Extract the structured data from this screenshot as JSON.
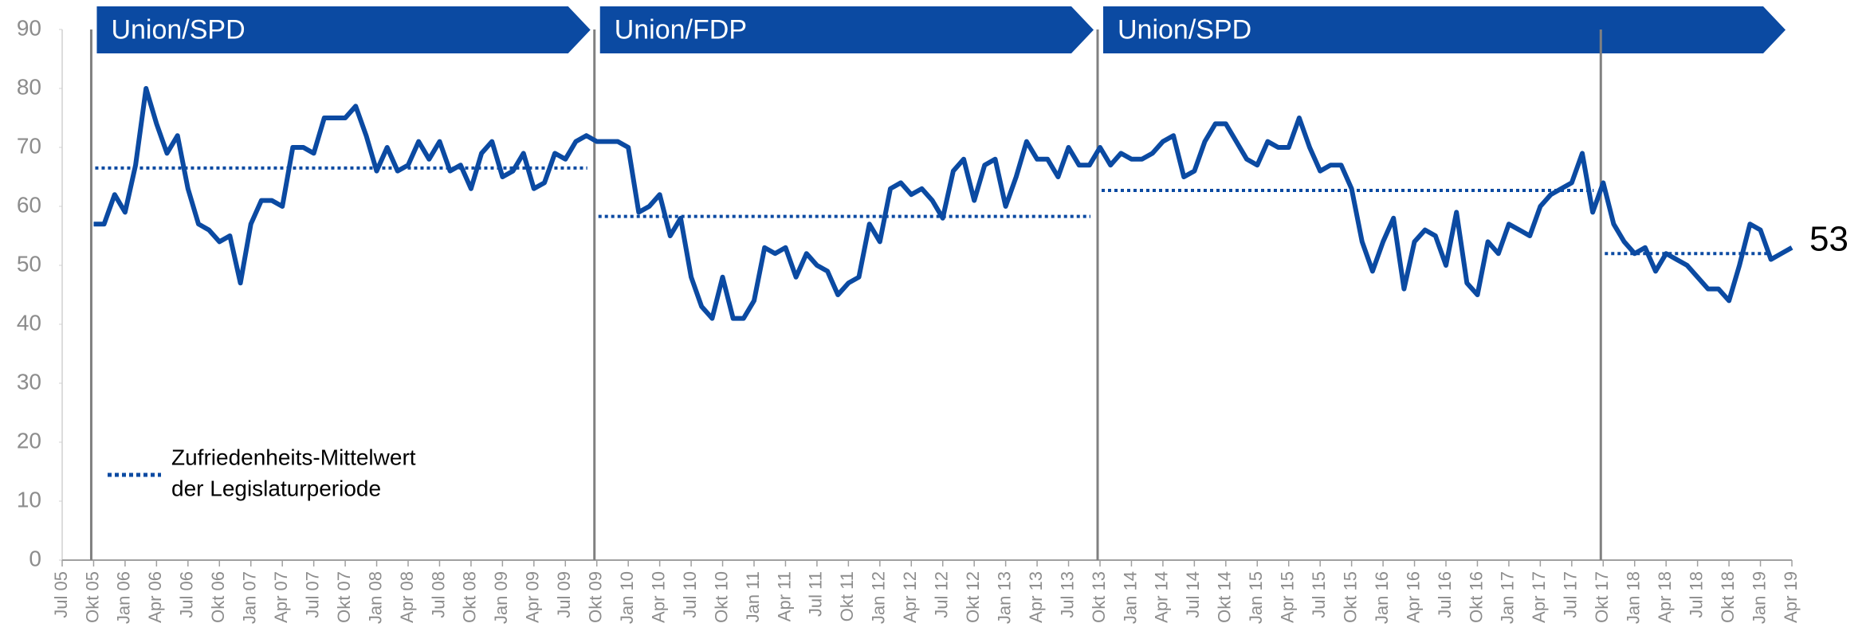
{
  "chart_data": {
    "type": "line",
    "categories": [
      "Jul 05",
      null,
      null,
      "Okt 05",
      null,
      null,
      "Jan 06",
      null,
      null,
      "Apr 06",
      null,
      null,
      "Jul 06",
      null,
      null,
      "Okt 06",
      null,
      null,
      "Jan 07",
      null,
      null,
      "Apr 07",
      null,
      null,
      "Jul 07",
      null,
      null,
      "Okt 07",
      null,
      null,
      "Jan 08",
      null,
      null,
      "Apr 08",
      null,
      null,
      "Jul 08",
      null,
      null,
      "Okt 08",
      null,
      null,
      "Jan 09",
      null,
      null,
      "Apr 09",
      null,
      null,
      "Jul 09",
      null,
      null,
      "Okt 09",
      null,
      null,
      "Jan 10",
      null,
      null,
      "Apr 10",
      null,
      null,
      "Jul 10",
      null,
      null,
      "Okt 10",
      null,
      null,
      "Jan 11",
      null,
      null,
      "Apr 11",
      null,
      null,
      "Jul 11",
      null,
      null,
      "Okt 11",
      null,
      null,
      "Jan 12",
      null,
      null,
      "Apr 12",
      null,
      null,
      "Jul 12",
      null,
      null,
      "Okt 12",
      null,
      null,
      "Jan 13",
      null,
      null,
      "Apr 13",
      null,
      null,
      "Jul 13",
      null,
      null,
      "Okt 13",
      null,
      null,
      "Jan 14",
      null,
      null,
      "Apr 14",
      null,
      null,
      "Jul 14",
      null,
      null,
      "Okt 14",
      null,
      null,
      "Jan 15",
      null,
      null,
      "Apr 15",
      null,
      null,
      "Jul 15",
      null,
      null,
      "Okt 15",
      null,
      null,
      "Jan 16",
      null,
      null,
      "Apr 16",
      null,
      null,
      "Jul 16",
      null,
      null,
      "Okt 16",
      null,
      null,
      "Jan 17",
      null,
      null,
      "Apr 17",
      null,
      null,
      "Jul 17",
      null,
      null,
      "Okt 17",
      null,
      null,
      "Jan 18",
      null,
      null,
      "Apr 18",
      null,
      null,
      "Jul 18",
      null,
      null,
      "Okt 18",
      null,
      null,
      "Jan 19",
      null,
      null,
      "Apr 19"
    ],
    "series": [
      {
        "color": "#0b4aa2",
        "values": [
          null,
          null,
          null,
          57,
          57,
          62,
          59,
          67,
          80,
          74,
          69,
          72,
          63,
          57,
          56,
          54,
          55,
          47,
          57,
          61,
          61,
          60,
          70,
          70,
          69,
          75,
          75,
          75,
          77,
          72,
          66,
          70,
          66,
          67,
          71,
          68,
          71,
          66,
          67,
          63,
          69,
          71,
          65,
          66,
          69,
          63,
          64,
          69,
          68,
          71,
          72,
          71,
          71,
          71,
          70,
          59,
          60,
          62,
          55,
          58,
          48,
          43,
          41,
          48,
          41,
          41,
          44,
          53,
          52,
          53,
          48,
          52,
          50,
          49,
          45,
          47,
          48,
          57,
          54,
          63,
          64,
          62,
          63,
          61,
          58,
          66,
          68,
          61,
          67,
          68,
          60,
          65,
          71,
          68,
          68,
          65,
          70,
          67,
          67,
          70,
          67,
          69,
          68,
          68,
          69,
          71,
          72,
          65,
          66,
          71,
          74,
          74,
          71,
          68,
          67,
          71,
          70,
          70,
          75,
          70,
          66,
          67,
          67,
          63,
          54,
          49,
          54,
          58,
          46,
          54,
          56,
          55,
          50,
          59,
          47,
          45,
          54,
          52,
          57,
          56,
          55,
          60,
          62,
          63,
          64,
          69,
          59,
          64,
          57,
          54,
          52,
          53,
          49,
          52,
          51,
          50,
          48,
          46,
          46,
          44,
          50,
          57,
          56,
          51,
          52,
          53
        ]
      }
    ],
    "ylim": [
      0,
      90
    ],
    "yticks": [
      0,
      10,
      20,
      30,
      40,
      50,
      60,
      70,
      80,
      90
    ],
    "grid": false,
    "banners": [
      {
        "label": "Union/SPD",
        "start": "Okt 05"
      },
      {
        "label": "Union/FDP",
        "start": "Okt 09"
      },
      {
        "label": "Union/SPD",
        "start": "Okt 13"
      }
    ],
    "legislatures": [
      {
        "start": "Okt 05",
        "mean": 66.5
      },
      {
        "start": "Okt 09",
        "mean": 58.3
      },
      {
        "start": "Okt 13",
        "mean": 62.7
      },
      {
        "start": "Okt 17",
        "mean": 52
      }
    ],
    "mean_color": "#0b4aa2",
    "mean_legend": [
      "Zufriedenheits-Mittelwert",
      "der Legislaturperiode"
    ]
  }
}
